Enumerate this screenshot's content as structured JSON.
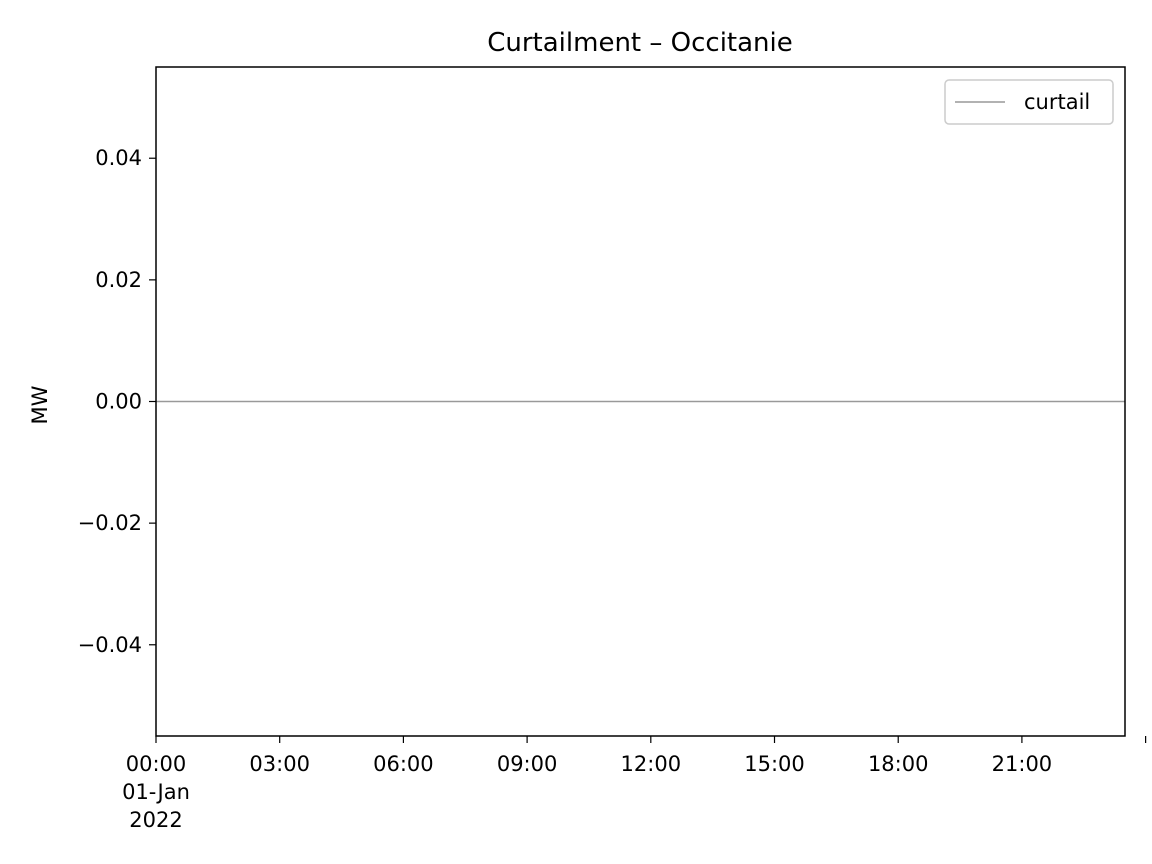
{
  "chart_data": {
    "type": "line",
    "title": "Curtailment – Occitanie",
    "xlabel": "",
    "ylabel": "MW",
    "x_ticks": [
      {
        "value": "2022-01-01T00:00",
        "lines": [
          "00:00",
          "01-Jan",
          "2022"
        ]
      },
      {
        "value": "2022-01-01T03:00",
        "lines": [
          "03:00"
        ]
      },
      {
        "value": "2022-01-01T06:00",
        "lines": [
          "06:00"
        ]
      },
      {
        "value": "2022-01-01T09:00",
        "lines": [
          "09:00"
        ]
      },
      {
        "value": "2022-01-01T12:00",
        "lines": [
          "12:00"
        ]
      },
      {
        "value": "2022-01-01T15:00",
        "lines": [
          "15:00"
        ]
      },
      {
        "value": "2022-01-01T18:00",
        "lines": [
          "18:00"
        ]
      },
      {
        "value": "2022-01-01T21:00",
        "lines": [
          "21:00"
        ]
      },
      {
        "value": "2022-01-02T00:00",
        "lines": []
      }
    ],
    "xlim": [
      "2022-01-01T00:00",
      "2022-01-01T23:30"
    ],
    "y_ticks": [
      {
        "value": -0.04,
        "label": "−0.04"
      },
      {
        "value": -0.02,
        "label": "−0.02"
      },
      {
        "value": 0.0,
        "label": "0.00"
      },
      {
        "value": 0.02,
        "label": "0.02"
      },
      {
        "value": 0.04,
        "label": "0.04"
      }
    ],
    "ylim": [
      -0.055,
      0.055
    ],
    "grid": false,
    "legend_position": "top-right",
    "series": [
      {
        "name": "curtail",
        "color": "#999999",
        "x": [
          "2022-01-01T00:00",
          "2022-01-01T23:30"
        ],
        "values": [
          0,
          0
        ]
      }
    ]
  }
}
